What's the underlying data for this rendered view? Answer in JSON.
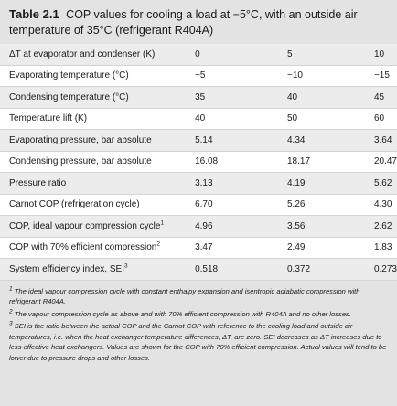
{
  "caption": {
    "number": "Table 2.1",
    "text": "COP values for cooling a load at −5°C, with an outside air temperature of 35°C (refrigerant R404A)"
  },
  "rows": [
    {
      "label": "ΔT at evaporator and condenser (K)",
      "sup": "",
      "values": [
        "0",
        "5",
        "10"
      ]
    },
    {
      "label": "Evaporating temperature (°C)",
      "sup": "",
      "values": [
        "−5",
        "−10",
        "−15"
      ]
    },
    {
      "label": "Condensing temperature (°C)",
      "sup": "",
      "values": [
        "35",
        "40",
        "45"
      ]
    },
    {
      "label": "Temperature lift (K)",
      "sup": "",
      "values": [
        "40",
        "50",
        "60"
      ]
    },
    {
      "label": "Evaporating pressure, bar absolute",
      "sup": "",
      "values": [
        "5.14",
        "4.34",
        "3.64"
      ]
    },
    {
      "label": "Condensing pressure, bar absolute",
      "sup": "",
      "values": [
        "16.08",
        "18.17",
        "20.47"
      ]
    },
    {
      "label": "Pressure ratio",
      "sup": "",
      "values": [
        "3.13",
        "4.19",
        "5.62"
      ]
    },
    {
      "label": "Carnot COP (refrigeration cycle)",
      "sup": "",
      "values": [
        "6.70",
        "5.26",
        "4.30"
      ]
    },
    {
      "label": "COP, ideal vapour compression cycle",
      "sup": "1",
      "values": [
        "4.96",
        "3.56",
        "2.62"
      ]
    },
    {
      "label": "COP with 70% efficient compression",
      "sup": "2",
      "values": [
        "3.47",
        "2.49",
        "1.83"
      ]
    },
    {
      "label": "System efficiency index, SEI",
      "sup": "3",
      "values": [
        "0.518",
        "0.372",
        "0.273"
      ]
    }
  ],
  "notes": [
    {
      "sup": "1",
      "text": "The ideal vapour compression cycle with constant enthalpy expansion and isentropic adiabatic compression with refrigerant R404A."
    },
    {
      "sup": "2",
      "text": "The vapour compression cycle as above and with 70% efficient compression with R404A and no other losses."
    },
    {
      "sup": "3",
      "text": "SEI is the ratio between the actual COP and the Carnot COP with reference to the cooling load and outside air temperatures, i.e. when the heat exchanger temperature differences, ΔT, are zero. SEI decreases as ΔT increases due to less effective heat exchangers. Values are shown for the COP with 70% efficient compression. Actual values will tend to be lower due to pressure drops and other losses."
    }
  ]
}
